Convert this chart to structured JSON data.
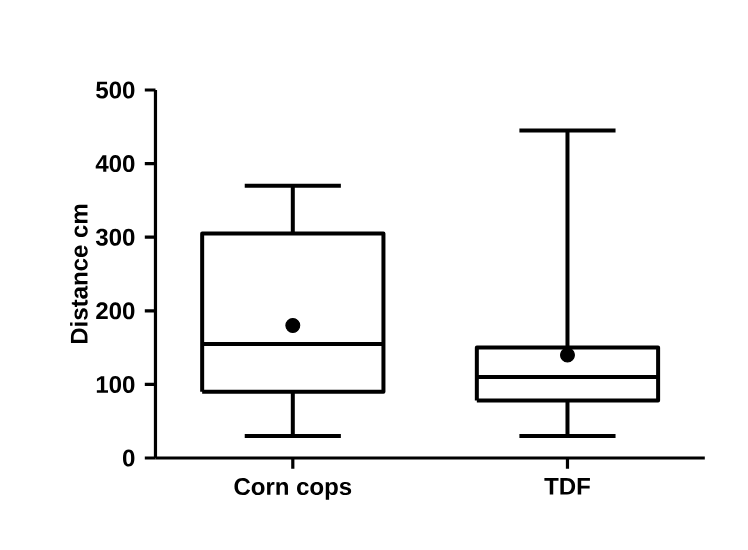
{
  "chart_data": {
    "type": "box",
    "ylabel": "Distance cm",
    "categories": [
      "Corn cops",
      "TDF"
    ],
    "color": "#000000",
    "boxes": [
      {
        "low": 30,
        "q1": 90,
        "median": 155,
        "q3": 305,
        "high": 370,
        "mean": 180
      },
      {
        "low": 30,
        "q1": 78,
        "median": 110,
        "q3": 150,
        "high": 445,
        "mean": 140
      }
    ],
    "ylim": [
      0,
      500
    ],
    "yticks": [
      0,
      100,
      200,
      300,
      400,
      500
    ]
  }
}
